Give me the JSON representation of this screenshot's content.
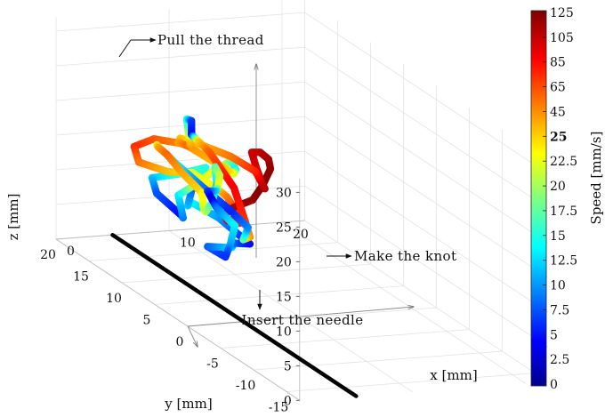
{
  "chart_data": {
    "type": "scatter",
    "subtype": "3d-trajectory",
    "title": "",
    "axes": {
      "x": {
        "label": "x [mm]",
        "range": [
          0,
          20
        ],
        "ticks": [
          "0",
          "10",
          "20"
        ]
      },
      "y": {
        "label": "y [mm]",
        "range": [
          -17,
          20
        ],
        "ticks": [
          "-15",
          "-10",
          "-5",
          "0",
          "5",
          "10",
          "15",
          "20"
        ]
      },
      "z": {
        "label": "z [mm]",
        "range": [
          0,
          30
        ],
        "ticks": [
          "0",
          "5",
          "10",
          "15",
          "20",
          "25",
          "30"
        ]
      }
    },
    "grid": true,
    "colorbar": {
      "label": "Speed [mm/s]",
      "colormap": "jet",
      "placement": "right",
      "ticks": [
        "0",
        "2.5",
        "5",
        "7.5",
        "10",
        "12.5",
        "15",
        "17.5",
        "20",
        "22.5",
        "25",
        "45",
        "65",
        "85",
        "105",
        "125"
      ],
      "highlighted_tick": "25"
    },
    "annotations": {
      "pull": "Pull the thread",
      "knot": "Make the knot",
      "insert": "Insert the needle"
    },
    "needle_segment": {
      "color": "#000000",
      "from": [
        5,
        -17,
        0
      ],
      "to": [
        5,
        20,
        0
      ]
    },
    "trajectory": [
      {
        "x": 8,
        "y": 8,
        "z": 4,
        "speed": 6
      },
      {
        "x": 7,
        "y": 9,
        "z": 5,
        "speed": 8
      },
      {
        "x": 9,
        "y": 10,
        "z": 4,
        "speed": 11
      },
      {
        "x": 8,
        "y": 7,
        "z": 6,
        "speed": 13
      },
      {
        "x": 7,
        "y": 5,
        "z": 8,
        "speed": 9
      },
      {
        "x": 9,
        "y": 6,
        "z": 7,
        "speed": 5
      },
      {
        "x": 8,
        "y": 9,
        "z": 9,
        "speed": 10
      },
      {
        "x": 6,
        "y": 10,
        "z": 11,
        "speed": 14
      },
      {
        "x": 7,
        "y": 12,
        "z": 9,
        "speed": 12
      },
      {
        "x": 8,
        "y": 13,
        "z": 11,
        "speed": 8
      },
      {
        "x": 7,
        "y": 11,
        "z": 13,
        "speed": 6
      },
      {
        "x": 6,
        "y": 9,
        "z": 14,
        "speed": 11
      },
      {
        "x": 8,
        "y": 11,
        "z": 15,
        "speed": 15
      },
      {
        "x": 7,
        "y": 13,
        "z": 13,
        "speed": 17
      },
      {
        "x": 5,
        "y": 14,
        "z": 12,
        "speed": 12
      },
      {
        "x": 6,
        "y": 15,
        "z": 9,
        "speed": 8
      },
      {
        "x": 7,
        "y": 13,
        "z": 7,
        "speed": 5
      },
      {
        "x": 6,
        "y": 11,
        "z": 8,
        "speed": 9
      },
      {
        "x": 5,
        "y": 10,
        "z": 12,
        "speed": 13
      },
      {
        "x": 4,
        "y": 6,
        "z": 16,
        "speed": 20
      },
      {
        "x": 4,
        "y": 3,
        "z": 20,
        "speed": 23
      },
      {
        "x": 5,
        "y": 2,
        "z": 22,
        "speed": 19
      },
      {
        "x": 6,
        "y": 3,
        "z": 20,
        "speed": 14
      },
      {
        "x": 7,
        "y": 5,
        "z": 18,
        "speed": 22
      },
      {
        "x": 6,
        "y": 6,
        "z": 19,
        "speed": 32
      },
      {
        "x": 5,
        "y": 9,
        "z": 20,
        "speed": 45
      },
      {
        "x": 4,
        "y": 12,
        "z": 19,
        "speed": 60
      },
      {
        "x": 4,
        "y": 15,
        "z": 16,
        "speed": 75
      },
      {
        "x": 5,
        "y": 16,
        "z": 13,
        "speed": 55
      },
      {
        "x": 7,
        "y": 15,
        "z": 12,
        "speed": 32
      },
      {
        "x": 8,
        "y": 13,
        "z": 13,
        "speed": 22
      },
      {
        "x": 8,
        "y": 9,
        "z": 13,
        "speed": 24
      },
      {
        "x": 7,
        "y": 6,
        "z": 14,
        "speed": 50
      },
      {
        "x": 6,
        "y": 3,
        "z": 14,
        "speed": 68
      },
      {
        "x": 4,
        "y": -1,
        "z": 15,
        "speed": 78
      },
      {
        "x": 2,
        "y": -3,
        "z": 17,
        "speed": 86
      },
      {
        "x": 0,
        "y": -6,
        "z": 19,
        "speed": 95
      },
      {
        "x": -2,
        "y": -9,
        "z": 22,
        "speed": 102
      },
      {
        "x": -3,
        "y": -12,
        "z": 25,
        "speed": 110
      },
      {
        "x": -3,
        "y": -15,
        "z": 28,
        "speed": 118
      },
      {
        "x": -3,
        "y": -16.5,
        "z": 31,
        "speed": 125
      },
      {
        "x": -2,
        "y": -16,
        "z": 33,
        "speed": 121
      },
      {
        "x": -1,
        "y": -14,
        "z": 33,
        "speed": 116
      },
      {
        "x": 0,
        "y": -11,
        "z": 32,
        "speed": 110
      },
      {
        "x": 1,
        "y": -8,
        "z": 30,
        "speed": 104
      },
      {
        "x": 2,
        "y": -7,
        "z": 27,
        "speed": 100
      },
      {
        "x": 2,
        "y": -8,
        "z": 25,
        "speed": 106
      },
      {
        "x": 1,
        "y": -10,
        "z": 26,
        "speed": 112
      },
      {
        "x": 0,
        "y": -11,
        "z": 28,
        "speed": 102
      },
      {
        "x": -1,
        "y": -12,
        "z": 30,
        "speed": 80
      },
      {
        "x": -2,
        "y": -10,
        "z": 31,
        "speed": 55
      },
      {
        "x": -3,
        "y": -7,
        "z": 31,
        "speed": 35
      },
      {
        "x": -3,
        "y": -4,
        "z": 30,
        "speed": 28
      },
      {
        "x": -2,
        "y": -2,
        "z": 28,
        "speed": 40
      },
      {
        "x": 0,
        "y": 0,
        "z": 26,
        "speed": 58
      },
      {
        "x": 2,
        "y": 3,
        "z": 24,
        "speed": 42
      },
      {
        "x": 3,
        "y": 5,
        "z": 24,
        "speed": 22
      },
      {
        "x": 4,
        "y": 7,
        "z": 25,
        "speed": 15
      },
      {
        "x": 5,
        "y": 8,
        "z": 24,
        "speed": 7
      },
      {
        "x": 5,
        "y": 8,
        "z": 22,
        "speed": 5
      },
      {
        "x": 6,
        "y": 7,
        "z": 20,
        "speed": 60
      },
      {
        "x": 7,
        "y": 5,
        "z": 16,
        "speed": 90
      },
      {
        "x": 8,
        "y": 5,
        "z": 11,
        "speed": 75
      },
      {
        "x": 9,
        "y": 6,
        "z": 8,
        "speed": 45
      },
      {
        "x": 9,
        "y": 7,
        "z": 7,
        "speed": 18
      },
      {
        "x": 10,
        "y": 8,
        "z": 8,
        "speed": 10
      },
      {
        "x": 9,
        "y": 9,
        "z": 10,
        "speed": 6
      },
      {
        "x": 8,
        "y": 12,
        "z": 12,
        "speed": 9
      },
      {
        "x": 7,
        "y": 14,
        "z": 14,
        "speed": 14
      },
      {
        "x": 6,
        "y": 15,
        "z": 16,
        "speed": 22
      },
      {
        "x": 5,
        "y": 13,
        "z": 17,
        "speed": 40
      },
      {
        "x": 4,
        "y": 10,
        "z": 18,
        "speed": 58
      },
      {
        "x": 3,
        "y": 6,
        "z": 18,
        "speed": 40
      },
      {
        "x": 3,
        "y": 3,
        "z": 17,
        "speed": 24
      },
      {
        "x": 2,
        "y": 1,
        "z": 16,
        "speed": 22
      },
      {
        "x": 1,
        "y": -1,
        "z": 17,
        "speed": 21
      },
      {
        "x": 1,
        "y": -2,
        "z": 19,
        "speed": 16
      },
      {
        "x": 2,
        "y": -1,
        "z": 21,
        "speed": 12
      },
      {
        "x": 3,
        "y": 1,
        "z": 22,
        "speed": 17
      },
      {
        "x": 4,
        "y": 2,
        "z": 20,
        "speed": 21
      },
      {
        "x": 5,
        "y": 4,
        "z": 17,
        "speed": 23
      },
      {
        "x": 6,
        "y": 6,
        "z": 15,
        "speed": 13
      },
      {
        "x": 7,
        "y": 9,
        "z": 13,
        "speed": 7
      },
      {
        "x": 8,
        "y": 10,
        "z": 11,
        "speed": 3
      },
      {
        "x": 9,
        "y": 11,
        "z": 9,
        "speed": 9
      },
      {
        "x": 10,
        "y": 10,
        "z": 7,
        "speed": 14
      },
      {
        "x": 9,
        "y": 9,
        "z": 5,
        "speed": 11
      },
      {
        "x": 8,
        "y": 8,
        "z": 4,
        "speed": 6
      }
    ]
  }
}
